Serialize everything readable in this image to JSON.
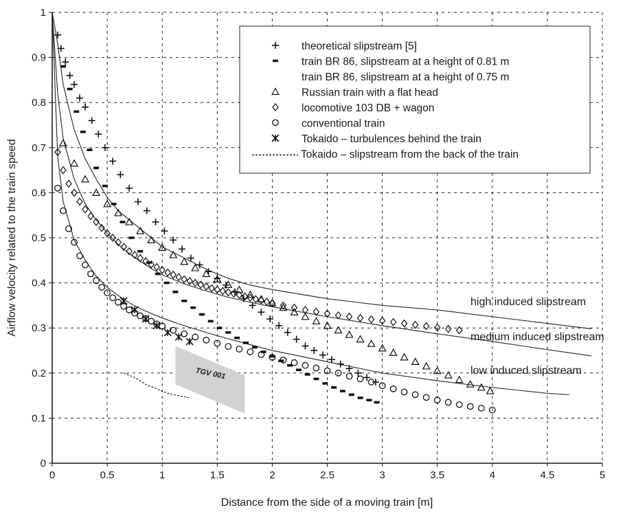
{
  "chart_data": {
    "type": "scatter",
    "title": "",
    "xlabel": "Distance from the side of a moving train [m]",
    "ylabel": "Airflow velocity related to the train speed",
    "xlim": [
      0,
      5
    ],
    "ylim": [
      0,
      1
    ],
    "x_ticks": [
      "0",
      "0.5",
      "1",
      "1.5",
      "2",
      "2.5",
      "3",
      "3.5",
      "4",
      "4.5",
      "5"
    ],
    "y_ticks": [
      "0",
      "0.1",
      "0.2",
      "0.3",
      "0.4",
      "0.5",
      "0.6",
      "0.7",
      "0.8",
      "0.9",
      "1"
    ],
    "grid": true,
    "legend_position": "top-right",
    "series": [
      {
        "name": "theoretical slipstream [5]",
        "marker": "plus",
        "x": [
          0.05,
          0.08,
          0.12,
          0.16,
          0.2,
          0.25,
          0.3,
          0.36,
          0.42,
          0.48,
          0.55,
          0.62,
          0.7,
          0.78,
          0.86,
          0.94,
          1.02,
          1.1,
          1.18,
          1.26,
          1.34,
          1.42,
          1.5,
          1.58,
          1.66,
          1.74,
          1.82,
          1.9,
          1.98,
          2.06,
          2.14,
          2.22,
          2.3,
          2.38,
          2.46,
          2.54,
          2.62,
          2.7,
          2.78,
          2.86,
          2.94
        ],
        "y": [
          0.95,
          0.92,
          0.89,
          0.86,
          0.84,
          0.81,
          0.79,
          0.76,
          0.73,
          0.7,
          0.67,
          0.64,
          0.61,
          0.58,
          0.56,
          0.535,
          0.515,
          0.495,
          0.475,
          0.455,
          0.44,
          0.425,
          0.41,
          0.395,
          0.38,
          0.365,
          0.35,
          0.335,
          0.32,
          0.305,
          0.29,
          0.275,
          0.26,
          0.25,
          0.24,
          0.23,
          0.22,
          0.21,
          0.2,
          0.19,
          0.18
        ]
      },
      {
        "name": "train BR 86, slipstream at a height of 0.81 m",
        "marker": "dash",
        "x": [
          0.1,
          0.16,
          0.22,
          0.28,
          0.34,
          0.4,
          0.48,
          0.56,
          0.64,
          0.72,
          0.8,
          0.88,
          0.96,
          1.04,
          1.12,
          1.2,
          1.28,
          1.36,
          1.44,
          1.52,
          1.6,
          1.68,
          1.76,
          1.84,
          1.92,
          2.0,
          2.08,
          2.16,
          2.24,
          2.32,
          2.4,
          2.48,
          2.56,
          2.64,
          2.72,
          2.8,
          2.88,
          2.95
        ],
        "y": [
          0.88,
          0.83,
          0.78,
          0.735,
          0.695,
          0.655,
          0.615,
          0.575,
          0.535,
          0.5,
          0.47,
          0.445,
          0.42,
          0.4,
          0.38,
          0.36,
          0.345,
          0.33,
          0.315,
          0.3,
          0.29,
          0.278,
          0.267,
          0.257,
          0.247,
          0.237,
          0.227,
          0.217,
          0.207,
          0.197,
          0.187,
          0.177,
          0.168,
          0.16,
          0.152,
          0.145,
          0.14,
          0.135
        ]
      },
      {
        "name": "train BR 86, slipstream at a height of 0.75 m",
        "marker": "none",
        "x": [],
        "y": []
      },
      {
        "name": "Russian train with a flat head",
        "marker": "triangle",
        "x": [
          0.1,
          0.2,
          0.3,
          0.4,
          0.5,
          0.6,
          0.7,
          0.8,
          0.9,
          1.0,
          1.1,
          1.2,
          1.3,
          1.4,
          1.5,
          1.6,
          1.7,
          1.8,
          1.9,
          2.0,
          2.1,
          2.2,
          2.3,
          2.4,
          2.5,
          2.6,
          2.7,
          2.8,
          2.9,
          3.0,
          3.1,
          3.2,
          3.3,
          3.4,
          3.5,
          3.6,
          3.7,
          3.8,
          3.9,
          3.98
        ],
        "y": [
          0.71,
          0.665,
          0.63,
          0.6,
          0.575,
          0.555,
          0.535,
          0.515,
          0.495,
          0.478,
          0.462,
          0.447,
          0.433,
          0.42,
          0.408,
          0.396,
          0.385,
          0.374,
          0.364,
          0.355,
          0.345,
          0.335,
          0.325,
          0.315,
          0.305,
          0.295,
          0.285,
          0.275,
          0.265,
          0.255,
          0.245,
          0.235,
          0.225,
          0.215,
          0.205,
          0.195,
          0.185,
          0.175,
          0.168,
          0.16
        ]
      },
      {
        "name": "locomotive 103 DB + wagon",
        "marker": "diamond",
        "x": [
          0.05,
          0.1,
          0.15,
          0.2,
          0.25,
          0.3,
          0.35,
          0.4,
          0.45,
          0.5,
          0.55,
          0.6,
          0.65,
          0.7,
          0.75,
          0.8,
          0.85,
          0.9,
          0.95,
          1.0,
          1.05,
          1.1,
          1.15,
          1.2,
          1.25,
          1.3,
          1.35,
          1.4,
          1.45,
          1.5,
          1.55,
          1.6,
          1.65,
          1.7,
          1.75,
          1.8,
          1.85,
          1.9,
          1.95,
          2.0,
          2.1,
          2.2,
          2.3,
          2.4,
          2.5,
          2.6,
          2.7,
          2.8,
          2.9,
          3.0,
          3.1,
          3.2,
          3.3,
          3.4,
          3.5,
          3.6,
          3.7
        ],
        "y": [
          0.69,
          0.65,
          0.62,
          0.6,
          0.58,
          0.563,
          0.548,
          0.535,
          0.522,
          0.51,
          0.5,
          0.49,
          0.48,
          0.47,
          0.462,
          0.455,
          0.448,
          0.441,
          0.435,
          0.429,
          0.423,
          0.418,
          0.413,
          0.408,
          0.404,
          0.4,
          0.396,
          0.392,
          0.388,
          0.385,
          0.382,
          0.379,
          0.376,
          0.373,
          0.37,
          0.367,
          0.364,
          0.361,
          0.358,
          0.355,
          0.35,
          0.345,
          0.34,
          0.336,
          0.332,
          0.328,
          0.325,
          0.322,
          0.319,
          0.316,
          0.313,
          0.31,
          0.307,
          0.304,
          0.301,
          0.298,
          0.295
        ]
      },
      {
        "name": "conventional train",
        "marker": "circle",
        "x": [
          0.05,
          0.1,
          0.15,
          0.2,
          0.25,
          0.3,
          0.35,
          0.4,
          0.45,
          0.5,
          0.55,
          0.6,
          0.65,
          0.7,
          0.75,
          0.8,
          0.85,
          0.9,
          0.95,
          1.0,
          1.1,
          1.2,
          1.3,
          1.4,
          1.5,
          1.6,
          1.7,
          1.8,
          1.9,
          2.0,
          2.1,
          2.2,
          2.3,
          2.4,
          2.5,
          2.6,
          2.7,
          2.8,
          2.9,
          3.0,
          3.1,
          3.2,
          3.3,
          3.4,
          3.5,
          3.6,
          3.7,
          3.8,
          3.9,
          4.0
        ],
        "y": [
          0.61,
          0.56,
          0.52,
          0.49,
          0.46,
          0.44,
          0.42,
          0.405,
          0.39,
          0.378,
          0.367,
          0.357,
          0.348,
          0.34,
          0.333,
          0.327,
          0.321,
          0.315,
          0.309,
          0.304,
          0.295,
          0.287,
          0.28,
          0.273,
          0.266,
          0.259,
          0.253,
          0.247,
          0.241,
          0.235,
          0.229,
          0.223,
          0.217,
          0.211,
          0.205,
          0.2,
          0.193,
          0.187,
          0.18,
          0.172,
          0.165,
          0.158,
          0.152,
          0.146,
          0.14,
          0.135,
          0.13,
          0.126,
          0.122,
          0.118
        ]
      },
      {
        "name": "Tokaido – turbulences behind the train",
        "marker": "asterisk",
        "x": [
          0.65,
          0.75,
          0.85,
          0.95,
          1.05,
          1.15,
          1.25
        ],
        "y": [
          0.36,
          0.34,
          0.32,
          0.305,
          0.29,
          0.28,
          0.27
        ]
      },
      {
        "name": "Tokaido – slipstream from the back of the train",
        "marker": "dashed-line",
        "x": [
          0.65,
          0.75,
          0.85,
          0.95,
          1.05,
          1.15,
          1.25
        ],
        "y": [
          0.2,
          0.19,
          0.175,
          0.165,
          0.155,
          0.15,
          0.145
        ]
      }
    ],
    "bands": [
      {
        "label": "high induced slipstream",
        "x": [
          0.0,
          0.05,
          0.1,
          0.2,
          0.3,
          0.4,
          0.5,
          0.6,
          0.7,
          0.8,
          0.9,
          1.0,
          1.2,
          1.4,
          1.6,
          1.8,
          2.0,
          2.5,
          3.0,
          3.5,
          4.0,
          4.5,
          4.9
        ],
        "y": [
          1.0,
          0.93,
          0.84,
          0.74,
          0.675,
          0.63,
          0.59,
          0.56,
          0.54,
          0.52,
          0.5,
          0.48,
          0.455,
          0.43,
          0.41,
          0.395,
          0.385,
          0.365,
          0.35,
          0.34,
          0.325,
          0.31,
          0.298
        ]
      },
      {
        "label": "medium induced slipstream",
        "x": [
          0.0,
          0.05,
          0.1,
          0.2,
          0.3,
          0.4,
          0.5,
          0.6,
          0.7,
          0.8,
          0.9,
          1.0,
          1.2,
          1.4,
          1.6,
          1.8,
          2.0,
          2.5,
          3.0,
          3.5,
          4.0,
          4.5,
          4.9
        ],
        "y": [
          1.0,
          0.82,
          0.72,
          0.63,
          0.575,
          0.54,
          0.51,
          0.485,
          0.465,
          0.448,
          0.432,
          0.418,
          0.398,
          0.382,
          0.368,
          0.357,
          0.347,
          0.325,
          0.305,
          0.287,
          0.27,
          0.252,
          0.238
        ]
      },
      {
        "label": "low induced slipstream",
        "x": [
          0.0,
          0.05,
          0.1,
          0.2,
          0.3,
          0.4,
          0.5,
          0.6,
          0.7,
          0.8,
          0.9,
          1.0,
          1.2,
          1.4,
          1.6,
          1.8,
          2.0,
          2.5,
          3.0,
          3.5,
          4.0,
          4.5,
          4.7
        ],
        "y": [
          1.0,
          0.68,
          0.58,
          0.495,
          0.45,
          0.415,
          0.39,
          0.372,
          0.356,
          0.343,
          0.332,
          0.322,
          0.305,
          0.29,
          0.276,
          0.263,
          0.25,
          0.225,
          0.2,
          0.183,
          0.168,
          0.155,
          0.152
        ]
      }
    ],
    "annotations": [
      {
        "text": "TGV 001",
        "polygon_x": [
          1.12,
          1.75,
          1.75,
          1.12
        ],
        "polygon_y": [
          0.26,
          0.195,
          0.11,
          0.175
        ]
      }
    ]
  }
}
